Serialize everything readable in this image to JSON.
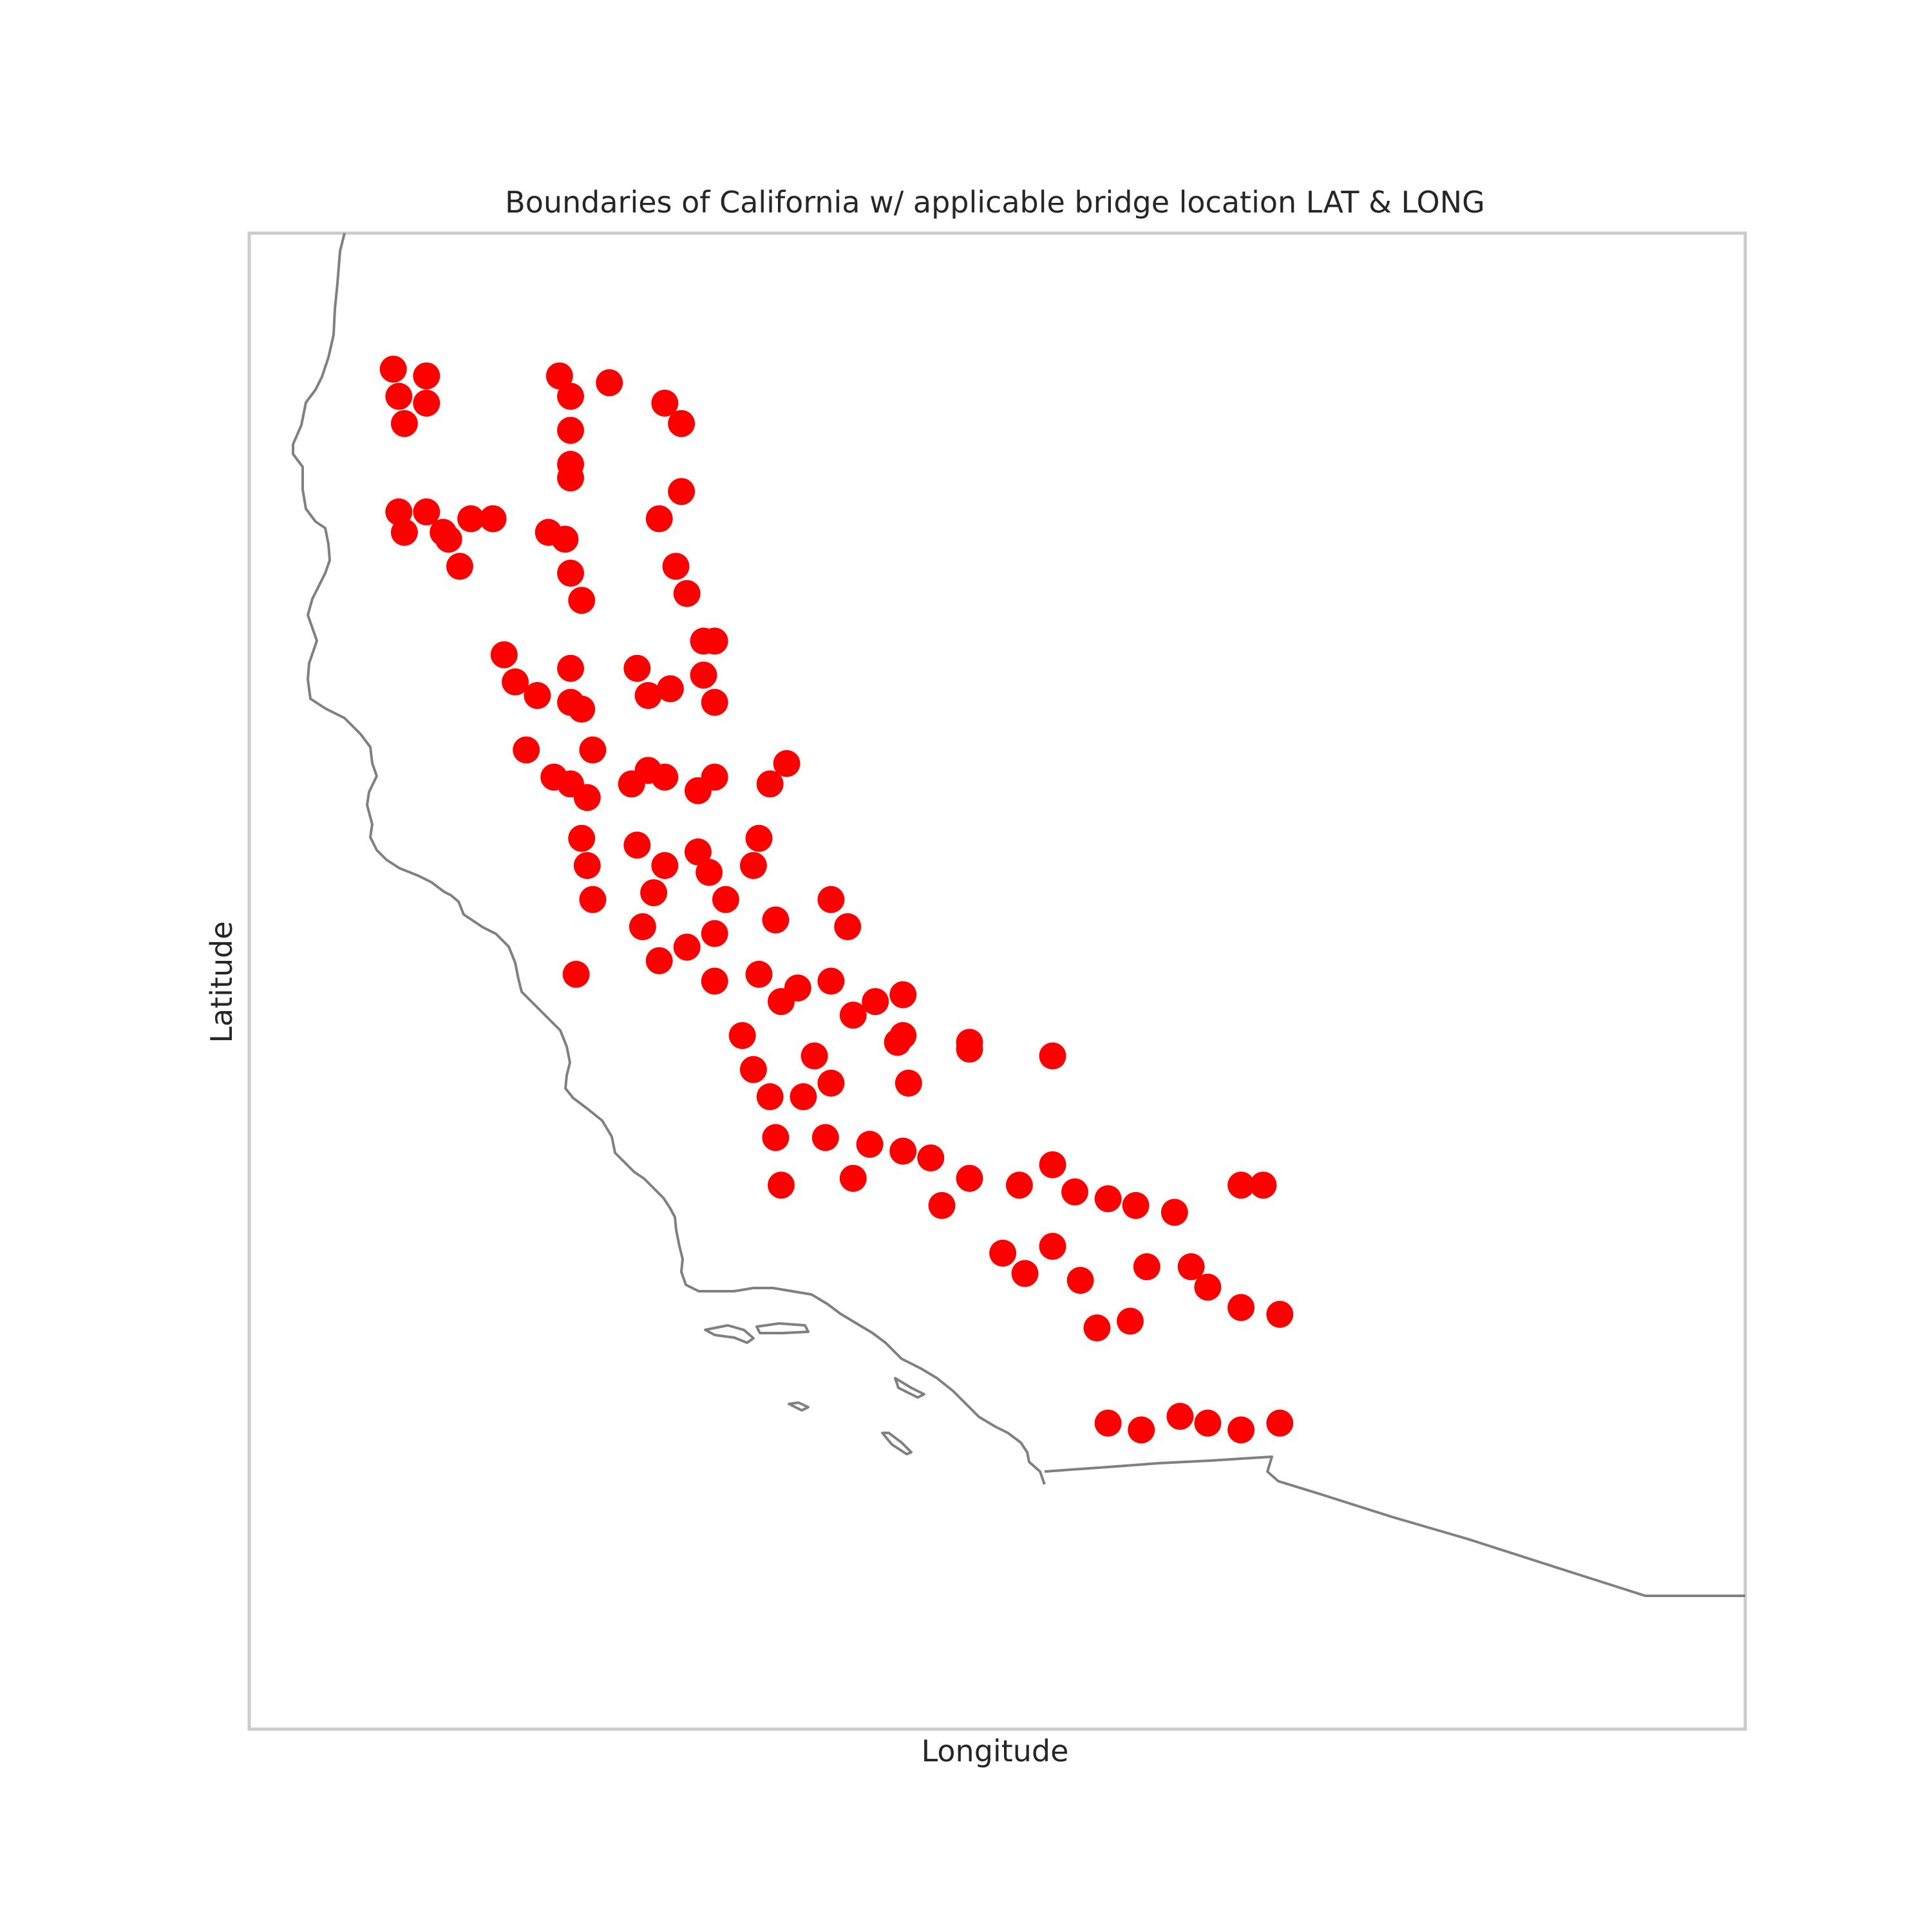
{
  "chart": {
    "title": "Boundaries of California w/ applicable bridge location LAT & LONG",
    "xlabel": "Longitude",
    "ylabel": "Latitude"
  },
  "chart_data": {
    "type": "scatter",
    "title": "Boundaries of California w/ applicable bridge location LAT & LONG",
    "xlabel": "Longitude",
    "ylabel": "Latitude",
    "xlim": [
      -125.5,
      -112.0
    ],
    "ylim": [
      31.0,
      42.0
    ],
    "grid": false,
    "colors": {
      "points": "#ff0000",
      "boundary": "#808080",
      "frame": "#cccccc"
    },
    "series": [
      {
        "x": [
          -124.2,
          -124.15,
          -124.1,
          -123.9,
          -123.9,
          -122.7,
          -122.6,
          -122.6,
          -122.6,
          -122.6,
          -122.25,
          -121.75,
          -121.6,
          -121.6,
          -121.8,
          -124.15,
          -124.1,
          -123.9,
          -123.7,
          -123.5,
          -123.3,
          -123.75,
          -123.6,
          -122.8,
          -122.65,
          -122.6,
          -122.5,
          -121.65,
          -121.55,
          -121.4,
          -123.2,
          -123.1,
          -122.9,
          -122.6,
          -122.6,
          -122.5,
          -122.0,
          -121.9,
          -121.7,
          -121.4,
          -121.3,
          -121.3,
          -123.0,
          -122.75,
          -122.6,
          -122.45,
          -122.4,
          -122.05,
          -121.9,
          -121.75,
          -121.45,
          -121.3,
          -120.9,
          -120.8,
          -120.65,
          -122.5,
          -122.45,
          -122.4,
          -122.0,
          -121.85,
          -121.75,
          -121.45,
          -121.35,
          -121.2,
          -120.95,
          -120.75,
          -120.25,
          -120.1,
          -122.55,
          -121.95,
          -121.8,
          -121.55,
          -121.3,
          -121.3,
          -120.9,
          -120.7,
          -120.55,
          -120.25,
          -120.05,
          -119.6,
          -119.65,
          -119.0,
          -121.05,
          -120.95,
          -120.8,
          -120.5,
          -120.4,
          -120.25,
          -119.85,
          -119.6,
          -119.55,
          -119.0,
          -118.25,
          -120.75,
          -120.7,
          -120.3,
          -120.05,
          -119.9,
          -119.6,
          -119.35,
          -119.25,
          -119.0,
          -118.55,
          -118.25,
          -118.05,
          -117.75,
          -117.5,
          -117.15,
          -116.55,
          -116.35,
          -118.7,
          -118.5,
          -118.25,
          -118.0,
          -117.85,
          -117.55,
          -117.4,
          -117.0,
          -116.85,
          -116.55,
          -116.2,
          -117.75,
          -117.45,
          -117.1,
          -116.85,
          -116.55,
          -116.2
        ],
        "y": [
          41.0,
          40.8,
          40.6,
          40.95,
          40.75,
          40.95,
          40.8,
          40.55,
          40.3,
          40.2,
          40.9,
          40.75,
          40.6,
          40.1,
          39.9,
          39.95,
          39.8,
          39.95,
          39.75,
          39.9,
          39.9,
          39.8,
          39.55,
          39.8,
          39.75,
          39.5,
          39.3,
          39.55,
          39.35,
          39.0,
          38.9,
          38.7,
          38.6,
          38.55,
          38.8,
          38.5,
          38.8,
          38.6,
          38.65,
          38.75,
          38.55,
          39.0,
          38.2,
          38.0,
          37.95,
          37.85,
          38.2,
          37.95,
          38.05,
          38.0,
          37.9,
          38.0,
          37.55,
          37.95,
          38.1,
          37.55,
          37.35,
          37.1,
          37.5,
          37.15,
          37.35,
          37.45,
          37.3,
          37.1,
          37.35,
          36.95,
          37.1,
          36.9,
          36.55,
          36.9,
          36.65,
          36.75,
          36.85,
          36.5,
          36.55,
          36.35,
          36.45,
          36.5,
          36.25,
          36.4,
          36.05,
          36.05,
          36.1,
          35.85,
          35.65,
          35.65,
          35.95,
          35.75,
          36.35,
          36.1,
          35.75,
          36.0,
          35.95,
          35.35,
          35.0,
          35.35,
          35.05,
          35.3,
          35.25,
          35.2,
          34.85,
          35.05,
          35.0,
          35.15,
          34.95,
          34.9,
          34.85,
          34.8,
          35.0,
          35.0,
          34.5,
          34.35,
          34.55,
          34.3,
          33.95,
          34.0,
          34.4,
          34.4,
          34.25,
          34.1,
          34.05,
          33.25,
          33.2,
          33.3,
          33.25,
          33.2,
          33.25
        ]
      }
    ]
  }
}
